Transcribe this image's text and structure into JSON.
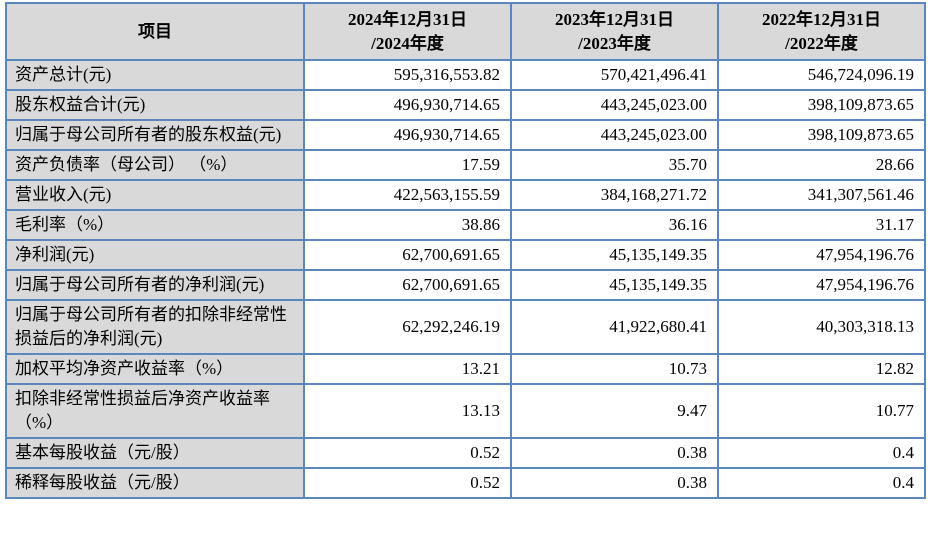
{
  "table": {
    "border_color": "#5b87bd",
    "header_bg_color": "#d9d9d9",
    "header": {
      "item": "项目",
      "y2024": "2024年12月31日\n/2024年度",
      "y2023": "2023年12月31日\n/2023年度",
      "y2022": "2022年12月31日\n/2022年度"
    },
    "rows": [
      {
        "label": "资产总计(元)",
        "v2024": "595,316,553.82",
        "v2023": "570,421,496.41",
        "v2022": "546,724,096.19"
      },
      {
        "label": "股东权益合计(元)",
        "v2024": "496,930,714.65",
        "v2023": "443,245,023.00",
        "v2022": "398,109,873.65"
      },
      {
        "label": "归属于母公司所有者的股东权益(元)",
        "v2024": "496,930,714.65",
        "v2023": "443,245,023.00",
        "v2022": "398,109,873.65"
      },
      {
        "label": "资产负债率（母公司） （%）",
        "v2024": "17.59",
        "v2023": "35.70",
        "v2022": "28.66"
      },
      {
        "label": "营业收入(元)",
        "v2024": "422,563,155.59",
        "v2023": "384,168,271.72",
        "v2022": "341,307,561.46"
      },
      {
        "label": "毛利率（%）",
        "v2024": "38.86",
        "v2023": "36.16",
        "v2022": "31.17"
      },
      {
        "label": "净利润(元)",
        "v2024": "62,700,691.65",
        "v2023": "45,135,149.35",
        "v2022": "47,954,196.76"
      },
      {
        "label": "归属于母公司所有者的净利润(元)",
        "v2024": "62,700,691.65",
        "v2023": "45,135,149.35",
        "v2022": "47,954,196.76"
      },
      {
        "label": "归属于母公司所有者的扣除非经常性损益后的净利润(元)",
        "v2024": "62,292,246.19",
        "v2023": "41,922,680.41",
        "v2022": "40,303,318.13"
      },
      {
        "label": "加权平均净资产收益率（%）",
        "v2024": "13.21",
        "v2023": "10.73",
        "v2022": "12.82"
      },
      {
        "label": "扣除非经常性损益后净资产收益率（%）",
        "v2024": "13.13",
        "v2023": "9.47",
        "v2022": "10.77"
      },
      {
        "label": "基本每股收益（元/股）",
        "v2024": "0.52",
        "v2023": "0.38",
        "v2022": "0.4"
      },
      {
        "label": "稀释每股收益（元/股）",
        "v2024": "0.52",
        "v2023": "0.38",
        "v2022": "0.4"
      }
    ]
  }
}
